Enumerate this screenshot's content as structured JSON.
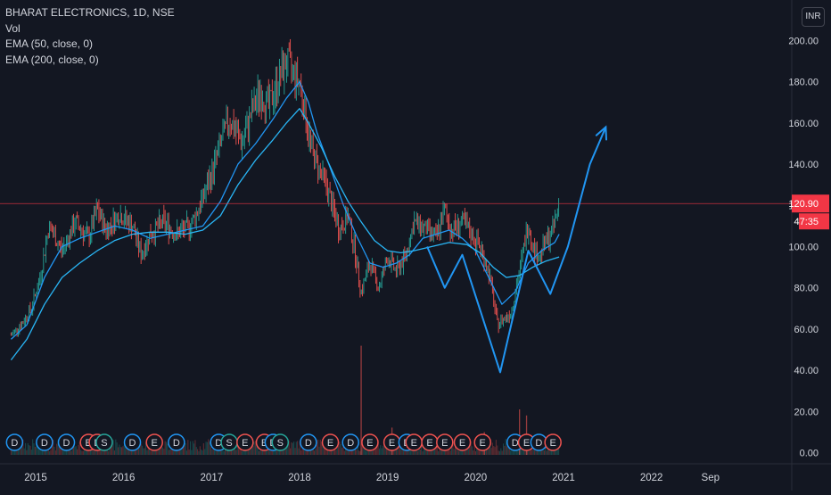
{
  "header": {
    "symbol_line": "BHARAT ELECTRONICS, 1D, NSE",
    "indicators": [
      "Vol",
      "EMA (50, close, 0)",
      "EMA (200, close, 0)"
    ],
    "currency": "INR"
  },
  "colors": {
    "background": "#131722",
    "up": "#26a69a",
    "down": "#ef5350",
    "ema50": "#2196f3",
    "ema200": "#29b6f6",
    "drawing": "#2196f3",
    "price_label": "#f23645",
    "axis_text": "#d1d4dc"
  },
  "price_tag": {
    "price": "120.90",
    "countdown": "47:35"
  },
  "chart_data": {
    "type": "line",
    "title": "BHARAT ELECTRONICS, 1D, NSE",
    "ylim": [
      0,
      210
    ],
    "y_ticks": [
      0,
      20,
      40,
      60,
      80,
      100,
      120,
      140,
      160,
      180,
      200
    ],
    "y_tick_labels": [
      "0.00",
      "20.00",
      "40.00",
      "60.00",
      "80.00",
      "100.00",
      "120.00",
      "140.00",
      "160.00",
      "180.00",
      "200.00"
    ],
    "x_ticks": [
      2015,
      2016,
      2017,
      2018,
      2019,
      2020,
      2021,
      2022,
      2022.67
    ],
    "x_tick_labels": [
      "2015",
      "2016",
      "2017",
      "2018",
      "2019",
      "2020",
      "2021",
      "2022",
      "Sep"
    ],
    "xlim": [
      2014.7,
      2023.05
    ],
    "series": [
      {
        "name": "Price",
        "x": [
          2014.72,
          2014.85,
          2014.95,
          2015.05,
          2015.15,
          2015.3,
          2015.45,
          2015.6,
          2015.7,
          2015.8,
          2015.95,
          2016.1,
          2016.2,
          2016.3,
          2016.45,
          2016.6,
          2016.75,
          2016.85,
          2017.0,
          2017.1,
          2017.2,
          2017.35,
          2017.45,
          2017.55,
          2017.65,
          2017.75,
          2017.85,
          2017.92,
          2018.0,
          2018.08,
          2018.15,
          2018.3,
          2018.45,
          2018.55,
          2018.62,
          2018.7,
          2018.8,
          2018.9,
          2019.0,
          2019.1,
          2019.2,
          2019.3,
          2019.45,
          2019.55,
          2019.65,
          2019.72,
          2019.85,
          2019.95,
          2020.05,
          2020.15,
          2020.25,
          2020.32,
          2020.4,
          2020.5,
          2020.6,
          2020.65,
          2020.72,
          2020.8,
          2020.88,
          2020.95
        ],
        "y": [
          57,
          63,
          70,
          85,
          110,
          98,
          112,
          104,
          118,
          108,
          116,
          110,
          96,
          106,
          112,
          106,
          110,
          118,
          135,
          150,
          162,
          150,
          165,
          175,
          168,
          180,
          190,
          185,
          180,
          160,
          145,
          130,
          108,
          115,
          100,
          78,
          92,
          80,
          95,
          88,
          95,
          112,
          108,
          104,
          118,
          108,
          112,
          106,
          100,
          88,
          62,
          65,
          68,
          88,
          112,
          100,
          95,
          102,
          108,
          121
        ]
      },
      {
        "name": "EMA (50, close, 0)",
        "x": [
          2014.72,
          2014.9,
          2015.1,
          2015.3,
          2015.5,
          2015.7,
          2015.9,
          2016.1,
          2016.3,
          2016.5,
          2016.7,
          2016.9,
          2017.1,
          2017.3,
          2017.5,
          2017.7,
          2017.85,
          2018.0,
          2018.1,
          2018.2,
          2018.35,
          2018.5,
          2018.65,
          2018.8,
          2018.95,
          2019.1,
          2019.25,
          2019.4,
          2019.55,
          2019.7,
          2019.85,
          2020.0,
          2020.15,
          2020.3,
          2020.45,
          2020.6,
          2020.75,
          2020.9,
          2020.95
        ],
        "y": [
          55,
          62,
          85,
          100,
          104,
          107,
          110,
          108,
          104,
          106,
          108,
          110,
          122,
          140,
          150,
          162,
          172,
          180,
          170,
          155,
          138,
          120,
          105,
          92,
          90,
          92,
          96,
          104,
          106,
          108,
          104,
          98,
          85,
          72,
          78,
          92,
          98,
          102,
          106
        ]
      },
      {
        "name": "EMA (200, close, 0)",
        "x": [
          2014.72,
          2014.9,
          2015.1,
          2015.3,
          2015.5,
          2015.7,
          2015.9,
          2016.1,
          2016.3,
          2016.5,
          2016.7,
          2016.9,
          2017.1,
          2017.3,
          2017.5,
          2017.7,
          2017.85,
          2018.0,
          2018.1,
          2018.25,
          2018.4,
          2018.55,
          2018.7,
          2018.85,
          2019.0,
          2019.15,
          2019.3,
          2019.5,
          2019.7,
          2019.9,
          2020.05,
          2020.2,
          2020.35,
          2020.5,
          2020.65,
          2020.8,
          2020.95
        ],
        "y": [
          45,
          55,
          72,
          85,
          92,
          98,
          103,
          106,
          107,
          107,
          106,
          108,
          115,
          130,
          142,
          152,
          160,
          167,
          160,
          148,
          134,
          122,
          112,
          103,
          98,
          97,
          98,
          100,
          102,
          101,
          97,
          90,
          85,
          86,
          90,
          93,
          95
        ]
      }
    ],
    "annotations": {
      "projection_path": {
        "x": [
          2019.45,
          2019.65,
          2019.85,
          2020.28,
          2020.6,
          2020.85,
          2021.05,
          2021.3,
          2021.48
        ],
        "y": [
          100,
          80,
          96,
          39,
          98,
          77,
          100,
          140,
          158
        ]
      },
      "horizontal_line_price": 120.9,
      "earnings_dividend_markers": [
        {
          "x": 2014.76,
          "label": "D"
        },
        {
          "x": 2015.1,
          "label": "D"
        },
        {
          "x": 2015.35,
          "label": "D"
        },
        {
          "x": 2015.6,
          "label": "E"
        },
        {
          "x": 2015.7,
          "label": "E"
        },
        {
          "x": 2015.78,
          "label": "S"
        },
        {
          "x": 2016.1,
          "label": "D"
        },
        {
          "x": 2016.35,
          "label": "E"
        },
        {
          "x": 2016.6,
          "label": "D"
        },
        {
          "x": 2017.08,
          "label": "D"
        },
        {
          "x": 2017.2,
          "label": "S"
        },
        {
          "x": 2017.38,
          "label": "E"
        },
        {
          "x": 2017.6,
          "label": "E"
        },
        {
          "x": 2017.7,
          "label": "D"
        },
        {
          "x": 2017.78,
          "label": "S"
        },
        {
          "x": 2018.1,
          "label": "D"
        },
        {
          "x": 2018.35,
          "label": "E"
        },
        {
          "x": 2018.58,
          "label": "D"
        },
        {
          "x": 2018.8,
          "label": "E"
        },
        {
          "x": 2019.05,
          "label": "E"
        },
        {
          "x": 2019.22,
          "label": "D"
        },
        {
          "x": 2019.3,
          "label": "E"
        },
        {
          "x": 2019.48,
          "label": "E"
        },
        {
          "x": 2019.65,
          "label": "E"
        },
        {
          "x": 2019.85,
          "label": "E"
        },
        {
          "x": 2020.08,
          "label": "E"
        },
        {
          "x": 2020.45,
          "label": "D"
        },
        {
          "x": 2020.58,
          "label": "E"
        },
        {
          "x": 2020.72,
          "label": "D"
        },
        {
          "x": 2020.88,
          "label": "E"
        }
      ],
      "volume_spikes": [
        {
          "x": 2018.7,
          "value": 0.72
        },
        {
          "x": 2020.5,
          "value": 0.3
        },
        {
          "x": 2020.58,
          "value": 0.26
        },
        {
          "x": 2019.05,
          "value": 0.18
        },
        {
          "x": 2020.1,
          "value": 0.15
        }
      ]
    },
    "grid": false,
    "legend": "top-left"
  }
}
